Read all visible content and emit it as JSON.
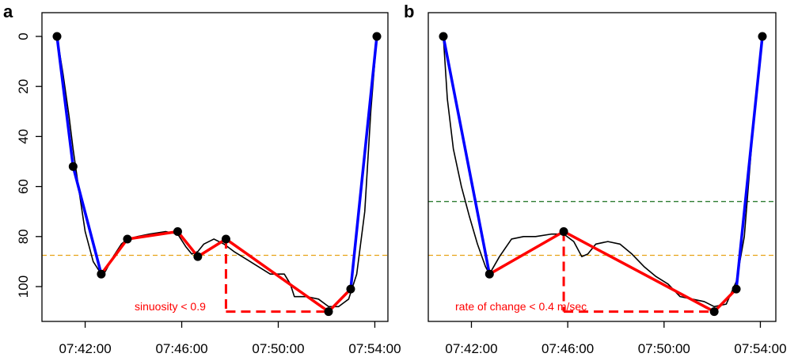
{
  "colors": {
    "depth_profile": "#000000",
    "descent_ascent": "#0000ff",
    "bottom_segments": "#ff0000",
    "threshold_orange": "#e8a317",
    "threshold_green": "#2e7d32"
  },
  "chart_data": [
    {
      "type": "line",
      "panel_label": "a",
      "title": "",
      "xlabel": "",
      "ylabel": "",
      "x_tick_labels": [
        "07:42:00",
        "07:46:00",
        "07:50:00",
        "07:54:00"
      ],
      "x_ticks": [
        "07:42:00",
        "07:46:00",
        "07:50:00",
        "07:54:00"
      ],
      "xlim": [
        "07:40:30",
        "07:54:40"
      ],
      "y_tick_labels": [
        "0",
        "20",
        "40",
        "60",
        "80",
        "100"
      ],
      "y_ticks": [
        0,
        20,
        40,
        60,
        80,
        100
      ],
      "ylim": [
        0,
        109
      ],
      "y_reversed": true,
      "grid": false,
      "series": [
        {
          "role": "depth_profile",
          "style": "black thin line",
          "x": [
            "07:40:50",
            "07:41:05",
            "07:41:20",
            "07:41:30",
            "07:41:45",
            "07:42:00",
            "07:42:20",
            "07:42:40",
            "07:42:50",
            "07:43:10",
            "07:43:30",
            "07:43:45",
            "07:44:10",
            "07:44:40",
            "07:45:20",
            "07:45:50",
            "07:46:10",
            "07:46:25",
            "07:46:40",
            "07:46:55",
            "07:47:20",
            "07:47:45",
            "07:48:10",
            "07:48:40",
            "07:49:10",
            "07:49:40",
            "07:50:15",
            "07:50:30",
            "07:50:40",
            "07:51:10",
            "07:51:40",
            "07:52:05",
            "07:52:30",
            "07:52:55",
            "07:53:15",
            "07:53:35",
            "07:53:50",
            "07:54:05"
          ],
          "y": [
            0,
            15,
            32,
            45,
            62,
            78,
            90,
            95,
            94,
            88,
            83,
            81,
            80,
            79,
            78,
            79,
            84,
            87,
            86,
            83,
            81,
            83,
            86,
            89,
            92,
            95,
            95,
            99,
            104,
            104,
            105,
            108,
            108,
            105,
            95,
            70,
            30,
            0
          ]
        },
        {
          "role": "descent",
          "style": "blue thick line with markers",
          "x": [
            "07:40:50",
            "07:41:30",
            "07:42:40"
          ],
          "y": [
            0,
            52,
            95
          ]
        },
        {
          "role": "bottom_phase",
          "style": "red thick line with markers",
          "x": [
            "07:42:40",
            "07:43:45",
            "07:45:50",
            "07:46:40",
            "07:47:50",
            "07:52:05",
            "07:53:00"
          ],
          "y": [
            95,
            81,
            78,
            88,
            81,
            110,
            101
          ]
        },
        {
          "role": "ascent",
          "style": "blue thick line with markers",
          "x": [
            "07:53:00",
            "07:54:05"
          ],
          "y": [
            101,
            0
          ]
        }
      ],
      "reference_lines": [
        {
          "type": "horizontal",
          "y": 87.5,
          "style": "orange dashed"
        }
      ],
      "dashed_markers": [
        {
          "x1": "07:47:50",
          "y1": 81,
          "x2": "07:47:50",
          "y2": 110
        },
        {
          "x1": "07:47:50",
          "y1": 110,
          "x2": "07:52:05",
          "y2": 110
        }
      ],
      "annotation": "sinuosity < 0.9"
    },
    {
      "type": "line",
      "panel_label": "b",
      "title": "",
      "xlabel": "",
      "ylabel": "",
      "x_tick_labels": [
        "07:42:00",
        "07:46:00",
        "07:50:00",
        "07:54:00"
      ],
      "x_ticks": [
        "07:42:00",
        "07:46:00",
        "07:50:00",
        "07:54:00"
      ],
      "xlim": [
        "07:40:30",
        "07:54:40"
      ],
      "y_tick_labels": [],
      "ylim": [
        0,
        109
      ],
      "y_reversed": true,
      "grid": false,
      "series": [
        {
          "role": "depth_profile",
          "style": "black thin line",
          "x": [
            "07:40:50",
            "07:41:00",
            "07:41:15",
            "07:41:35",
            "07:41:55",
            "07:42:15",
            "07:42:35",
            "07:42:45",
            "07:43:10",
            "07:43:40",
            "07:44:10",
            "07:44:40",
            "07:45:20",
            "07:45:50",
            "07:46:15",
            "07:46:35",
            "07:46:50",
            "07:47:10",
            "07:47:40",
            "07:48:10",
            "07:48:40",
            "07:49:10",
            "07:49:40",
            "07:50:10",
            "07:50:40",
            "07:51:10",
            "07:51:40",
            "07:52:05",
            "07:52:35",
            "07:53:00",
            "07:53:20",
            "07:53:40",
            "07:54:05"
          ],
          "y": [
            0,
            25,
            45,
            60,
            72,
            83,
            92,
            95,
            88,
            81,
            80,
            80,
            79,
            79,
            82,
            88,
            87,
            83,
            82,
            83,
            87,
            92,
            96,
            99,
            104,
            105,
            106,
            108,
            107,
            98,
            80,
            40,
            0
          ]
        },
        {
          "role": "descent",
          "style": "blue thick line with markers",
          "x": [
            "07:40:50",
            "07:42:45"
          ],
          "y": [
            0,
            95
          ]
        },
        {
          "role": "bottom_phase",
          "style": "red thick line with markers",
          "x": [
            "07:42:45",
            "07:45:50",
            "07:52:05",
            "07:53:00"
          ],
          "y": [
            95,
            78,
            110,
            101
          ]
        },
        {
          "role": "ascent",
          "style": "blue thick line with markers",
          "x": [
            "07:53:00",
            "07:54:05"
          ],
          "y": [
            101,
            0
          ]
        }
      ],
      "reference_lines": [
        {
          "type": "horizontal",
          "y": 66,
          "style": "green dashed"
        },
        {
          "type": "horizontal",
          "y": 87.5,
          "style": "orange dashed"
        }
      ],
      "dashed_markers": [
        {
          "x1": "07:45:50",
          "y1": 78,
          "x2": "07:45:50",
          "y2": 110
        },
        {
          "x1": "07:45:50",
          "y1": 110,
          "x2": "07:52:05",
          "y2": 110
        }
      ],
      "annotation": "rate of change < 0.4 m/sec"
    }
  ]
}
